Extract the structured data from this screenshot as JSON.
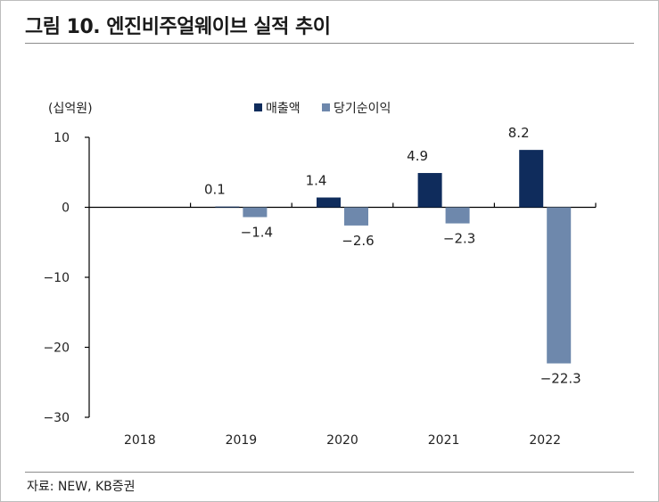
{
  "title": "그림 10. 엔진비주얼웨이브 실적 추이",
  "source": "자료: NEW, KB증권",
  "colors": {
    "revenue": "#0f2c5c",
    "net_income": "#6e88ac"
  },
  "chart_data": {
    "type": "bar",
    "unit_label": "(십억원)",
    "categories": [
      "2018",
      "2019",
      "2020",
      "2021",
      "2022"
    ],
    "series": [
      {
        "name": "매출액",
        "values": [
          null,
          0.1,
          1.4,
          4.9,
          8.2
        ],
        "labels": [
          "",
          "0.1",
          "1.4",
          "4.9",
          "8.2"
        ]
      },
      {
        "name": "당기순이익",
        "values": [
          null,
          -1.4,
          -2.6,
          -2.3,
          -22.3
        ],
        "labels": [
          "",
          "-1.4",
          "-2.6",
          "-2.3",
          "-22.3"
        ]
      }
    ],
    "ylim": [
      -30,
      10
    ],
    "yticks": [
      "10",
      "0",
      "-10",
      "-20",
      "-30"
    ],
    "legend": "top-center",
    "grid": false
  }
}
